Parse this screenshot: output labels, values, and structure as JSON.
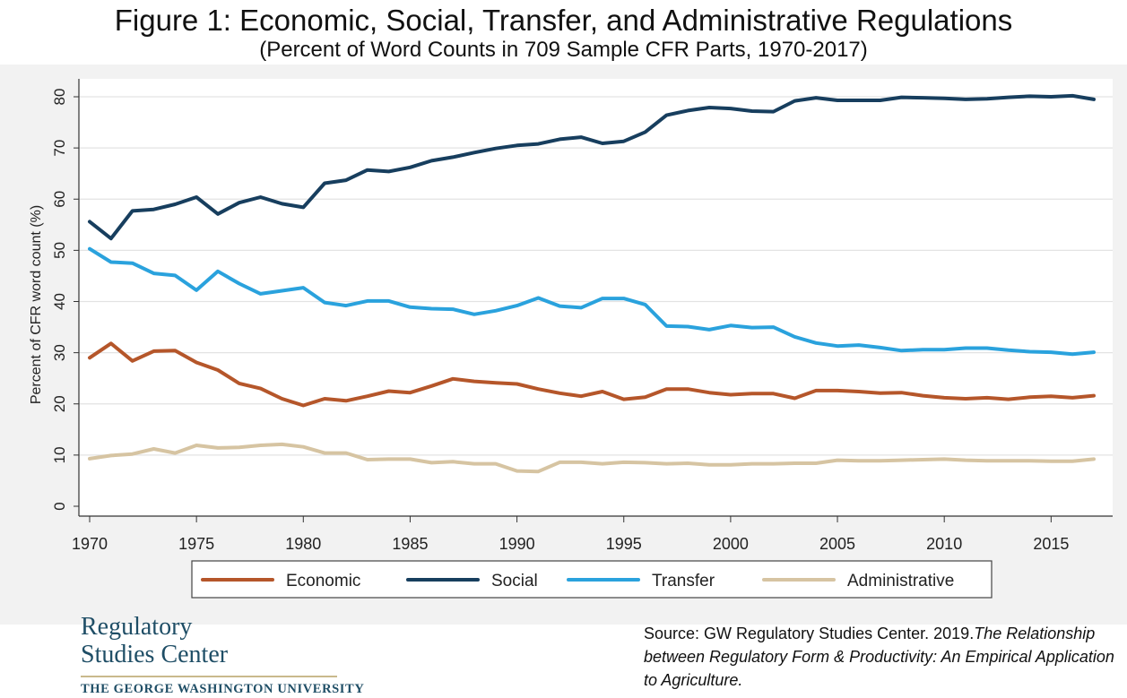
{
  "header": {
    "title": "Figure 1: Economic, Social, Transfer, and Administrative Regulations",
    "subtitle": "(Percent of Word Counts in 709 Sample CFR Parts, 1970-2017)"
  },
  "chart_data": {
    "type": "line",
    "title": "Figure 1: Economic, Social, Transfer, and Administrative Regulations",
    "subtitle": "(Percent of Word Counts in 709 Sample CFR Parts, 1970-2017)",
    "xlabel": "",
    "ylabel": "Percent of CFR word count (%)",
    "xlim": [
      1970,
      2017
    ],
    "ylim": [
      0,
      80
    ],
    "xticks": [
      1970,
      1975,
      1980,
      1985,
      1990,
      1995,
      2000,
      2005,
      2010,
      2015
    ],
    "yticks": [
      0,
      10,
      20,
      30,
      40,
      50,
      60,
      70,
      80
    ],
    "grid": true,
    "legend_position": "bottom",
    "x": [
      1970,
      1971,
      1972,
      1973,
      1974,
      1975,
      1976,
      1977,
      1978,
      1979,
      1980,
      1981,
      1982,
      1983,
      1984,
      1985,
      1986,
      1987,
      1988,
      1989,
      1990,
      1991,
      1992,
      1993,
      1994,
      1995,
      1996,
      1997,
      1998,
      1999,
      2000,
      2001,
      2002,
      2003,
      2004,
      2005,
      2006,
      2007,
      2008,
      2009,
      2010,
      2011,
      2012,
      2013,
      2014,
      2015,
      2016,
      2017
    ],
    "series": [
      {
        "name": "Economic",
        "color": "#b5562a",
        "values": [
          29.0,
          31.8,
          28.4,
          30.3,
          30.4,
          28.1,
          26.6,
          24.0,
          23.0,
          21.0,
          19.7,
          21.0,
          20.6,
          21.5,
          22.5,
          22.2,
          23.5,
          24.9,
          24.4,
          24.1,
          23.9,
          22.9,
          22.1,
          21.5,
          22.4,
          20.9,
          21.3,
          22.9,
          22.9,
          22.2,
          21.8,
          22.0,
          22.0,
          21.1,
          22.6,
          22.6,
          22.4,
          22.1,
          22.2,
          21.6,
          21.2,
          21.0,
          21.2,
          20.9,
          21.3,
          21.5,
          21.2,
          21.6
        ]
      },
      {
        "name": "Social",
        "color": "#173e5e",
        "values": [
          55.6,
          52.3,
          57.7,
          58.0,
          59.0,
          60.4,
          57.1,
          59.3,
          60.4,
          59.1,
          58.4,
          63.1,
          63.7,
          65.7,
          65.4,
          66.2,
          67.5,
          68.2,
          69.1,
          69.9,
          70.5,
          70.8,
          71.7,
          72.1,
          70.9,
          71.3,
          73.1,
          76.4,
          77.3,
          77.9,
          77.7,
          77.2,
          77.1,
          79.2,
          79.8,
          79.3,
          79.3,
          79.3,
          79.9,
          79.8,
          79.7,
          79.5,
          79.6,
          79.9,
          80.1,
          80.0,
          80.2,
          79.5
        ]
      },
      {
        "name": "Transfer",
        "color": "#2aa2dd",
        "values": [
          50.3,
          47.7,
          47.5,
          45.5,
          45.1,
          42.2,
          45.9,
          43.5,
          41.5,
          42.1,
          42.7,
          39.8,
          39.2,
          40.1,
          40.1,
          38.9,
          38.6,
          38.5,
          37.5,
          38.2,
          39.2,
          40.7,
          39.1,
          38.8,
          40.6,
          40.6,
          39.4,
          35.2,
          35.1,
          34.5,
          35.3,
          34.9,
          35.0,
          33.1,
          31.9,
          31.3,
          31.5,
          31.0,
          30.4,
          30.6,
          30.6,
          30.9,
          30.9,
          30.5,
          30.2,
          30.1,
          29.7,
          30.1
        ]
      },
      {
        "name": "Administrative",
        "color": "#d6c4a2",
        "values": [
          9.3,
          9.9,
          10.2,
          11.2,
          10.4,
          11.9,
          11.4,
          11.5,
          11.9,
          12.1,
          11.6,
          10.4,
          10.4,
          9.1,
          9.2,
          9.2,
          8.5,
          8.7,
          8.3,
          8.3,
          6.9,
          6.8,
          8.6,
          8.6,
          8.3,
          8.6,
          8.5,
          8.3,
          8.4,
          8.1,
          8.1,
          8.3,
          8.3,
          8.4,
          8.4,
          9.0,
          8.9,
          8.9,
          9.0,
          9.1,
          9.2,
          9.0,
          8.9,
          8.9,
          8.9,
          8.8,
          8.8,
          9.2
        ]
      }
    ]
  },
  "logo": {
    "line1": "Regulatory",
    "line2": "Studies Center",
    "university": "THE GEORGE WASHINGTON UNIVERSITY"
  },
  "source": {
    "prefix": "Source: GW Regulatory Studies Center. 2019.",
    "italic": "The Relationship between Regulatory Form & Productivity: An Empirical Application to Agriculture."
  }
}
